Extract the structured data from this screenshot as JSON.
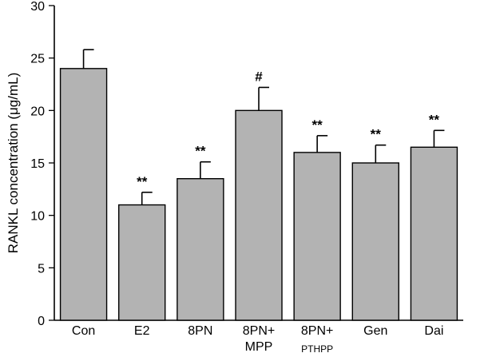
{
  "chart_data": {
    "type": "bar",
    "title": "",
    "xlabel": "",
    "ylabel": "RANKL concentration (μg/mL)",
    "ylim": [
      0,
      30
    ],
    "yticks": [
      0,
      5,
      10,
      15,
      20,
      25,
      30
    ],
    "grid": false,
    "categories": [
      {
        "line1": "Con",
        "line2": ""
      },
      {
        "line1": "E2",
        "line2": ""
      },
      {
        "line1": "8PN",
        "line2": ""
      },
      {
        "line1": "8PN+",
        "line2": "MPP"
      },
      {
        "line1": "8PN+",
        "line2": "PTHPP"
      },
      {
        "line1": "Gen",
        "line2": ""
      },
      {
        "line1": "Dai",
        "line2": ""
      }
    ],
    "values": [
      24.0,
      11.0,
      13.5,
      20.0,
      16.0,
      15.0,
      16.5
    ],
    "errors": [
      1.8,
      1.2,
      1.6,
      2.2,
      1.6,
      1.7,
      1.6
    ],
    "annotations": [
      "",
      "**",
      "**",
      "#",
      "**",
      "**",
      "**"
    ],
    "bar_color": "#b3b3b3"
  }
}
